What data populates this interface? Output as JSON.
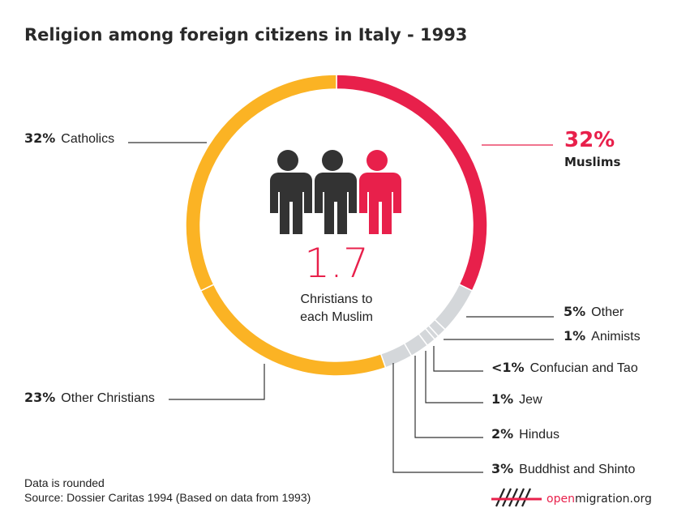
{
  "title": "Religion among foreign citizens in Italy - 1993",
  "center": {
    "number": "1.7",
    "line1": "Christians to",
    "line2": "each Muslim"
  },
  "footer": {
    "note": "Data is rounded",
    "source": "Source: Dossier Caritas 1994 (Based on data from 1993)",
    "brand_pre": "open",
    "brand_post": "migration.org"
  },
  "colors": {
    "muslims": "#e8204b",
    "christians": "#fbb324",
    "minor": "#d4d7da",
    "people_dark": "#333333",
    "people_red": "#e8204b"
  },
  "chart_data": {
    "type": "pie",
    "title": "Religion among foreign citizens in Italy - 1993",
    "slices": [
      {
        "label": "Muslims",
        "pct_text": "32%",
        "value": 32
      },
      {
        "label": "Other",
        "pct_text": "5%",
        "value": 5
      },
      {
        "label": "Animists",
        "pct_text": "1%",
        "value": 1
      },
      {
        "label": "Confucian and Tao",
        "pct_text": "<1%",
        "value": 0.5
      },
      {
        "label": "Jew",
        "pct_text": "1%",
        "value": 1
      },
      {
        "label": "Hindus",
        "pct_text": "2%",
        "value": 2
      },
      {
        "label": "Buddhist and Shinto",
        "pct_text": "3%",
        "value": 3
      },
      {
        "label": "Other Christians",
        "pct_text": "23%",
        "value": 23
      },
      {
        "label": "Catholics",
        "pct_text": "32%",
        "value": 32
      }
    ]
  }
}
